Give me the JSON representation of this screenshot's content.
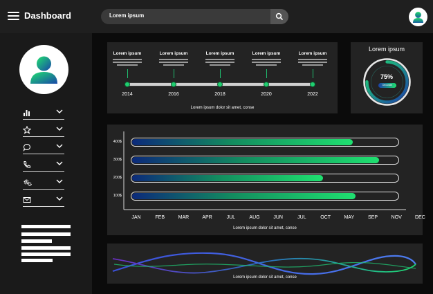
{
  "header": {
    "title": "Dashboard",
    "search_text": "Lorem ipsum"
  },
  "sidebar": {
    "items": [
      {
        "icon": "bar-chart-icon"
      },
      {
        "icon": "star-icon"
      },
      {
        "icon": "chat-icon"
      },
      {
        "icon": "phone-icon"
      },
      {
        "icon": "gears-icon"
      },
      {
        "icon": "mail-icon"
      }
    ]
  },
  "timeline": {
    "entries": [
      {
        "title": "Lorem ipsum",
        "year": "2014"
      },
      {
        "title": "Lorem ipsum",
        "year": "2016"
      },
      {
        "title": "Lorem ipsum",
        "year": "2018"
      },
      {
        "title": "Lorem ipsum",
        "year": "2020"
      },
      {
        "title": "Lorem ipsum",
        "year": "2022"
      }
    ],
    "caption": "Lorem ipsum dolor sit amet, conse"
  },
  "gauge": {
    "title": "Lorem ipsum",
    "value_text": "75%",
    "value": 0.75,
    "pill_text": "Decorate"
  },
  "chart_data": {
    "type": "bar",
    "orientation": "horizontal",
    "y_categories": [
      "400$",
      "300$",
      "200$",
      "100$"
    ],
    "x_tick_labels": [
      "JAN",
      "FEB",
      "MAR",
      "APR",
      "JUL",
      "AUG",
      "JUN",
      "JUL",
      "OCT",
      "MAY",
      "SEP",
      "NOV",
      "DEC"
    ],
    "fill_fractions": [
      0.83,
      0.93,
      0.72,
      0.84
    ],
    "caption": "Lorem ipsum dolor sit amet, conse"
  },
  "wave": {
    "caption": "Lorem ipsum dolor sit amet, conse"
  },
  "colors": {
    "accent_green": "#1fe070",
    "accent_blue": "#1b3fa8",
    "panel": "#232323"
  }
}
